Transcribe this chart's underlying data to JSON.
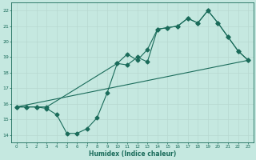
{
  "xlabel": "Humidex (Indice chaleur)",
  "xlim": [
    -0.5,
    23.5
  ],
  "ylim": [
    13.5,
    22.5
  ],
  "xticks": [
    0,
    1,
    2,
    3,
    4,
    5,
    6,
    7,
    8,
    9,
    10,
    11,
    12,
    13,
    14,
    15,
    16,
    17,
    18,
    19,
    20,
    21,
    22,
    23
  ],
  "yticks": [
    14,
    15,
    16,
    17,
    18,
    19,
    20,
    21,
    22
  ],
  "bg_color": "#c5e8e0",
  "line_color": "#1a6b5a",
  "grid_color": "#b8d8cf",
  "line1_x": [
    0,
    1,
    2,
    3,
    4,
    5,
    6,
    7,
    8,
    9,
    10,
    11,
    12,
    13,
    14,
    15,
    16,
    17,
    18,
    19,
    20,
    21,
    22,
    23
  ],
  "line1_y": [
    15.8,
    15.8,
    15.8,
    15.7,
    15.3,
    14.1,
    14.1,
    14.4,
    15.1,
    16.7,
    18.6,
    18.5,
    19.0,
    18.7,
    20.8,
    20.9,
    21.0,
    21.5,
    21.2,
    22.0,
    21.2,
    20.3,
    19.4,
    18.8
  ],
  "line2_x": [
    0,
    1,
    2,
    3,
    10,
    11,
    12,
    13,
    14,
    15,
    16,
    17,
    18,
    19,
    20,
    21,
    22,
    23
  ],
  "line2_y": [
    15.8,
    15.8,
    15.8,
    15.8,
    18.6,
    19.2,
    18.8,
    19.5,
    20.8,
    20.9,
    21.0,
    21.5,
    21.2,
    22.0,
    21.2,
    20.3,
    19.4,
    18.8
  ],
  "line3_x": [
    0,
    23
  ],
  "line3_y": [
    15.8,
    18.8
  ]
}
